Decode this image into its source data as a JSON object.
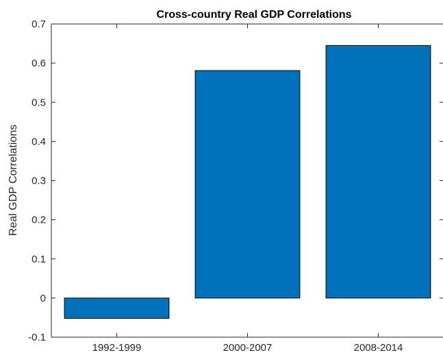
{
  "chart_data": {
    "type": "bar",
    "title": "Cross-country Real GDP Correlations",
    "xlabel": "",
    "ylabel": "Real GDP Correlations",
    "categories": [
      "1992-1999",
      "2000-2007",
      "2008-2014"
    ],
    "values": [
      -0.052,
      0.581,
      0.645
    ],
    "ylim": [
      -0.1,
      0.7
    ],
    "yticks": [
      "-0.1",
      "0",
      "0.1",
      "0.2",
      "0.3",
      "0.4",
      "0.5",
      "0.6",
      "0.7"
    ],
    "grid": false,
    "legend": "none",
    "colors": {
      "bar_fill": "#0072BD",
      "bar_edge": "#000000",
      "axis": "#262626"
    }
  }
}
